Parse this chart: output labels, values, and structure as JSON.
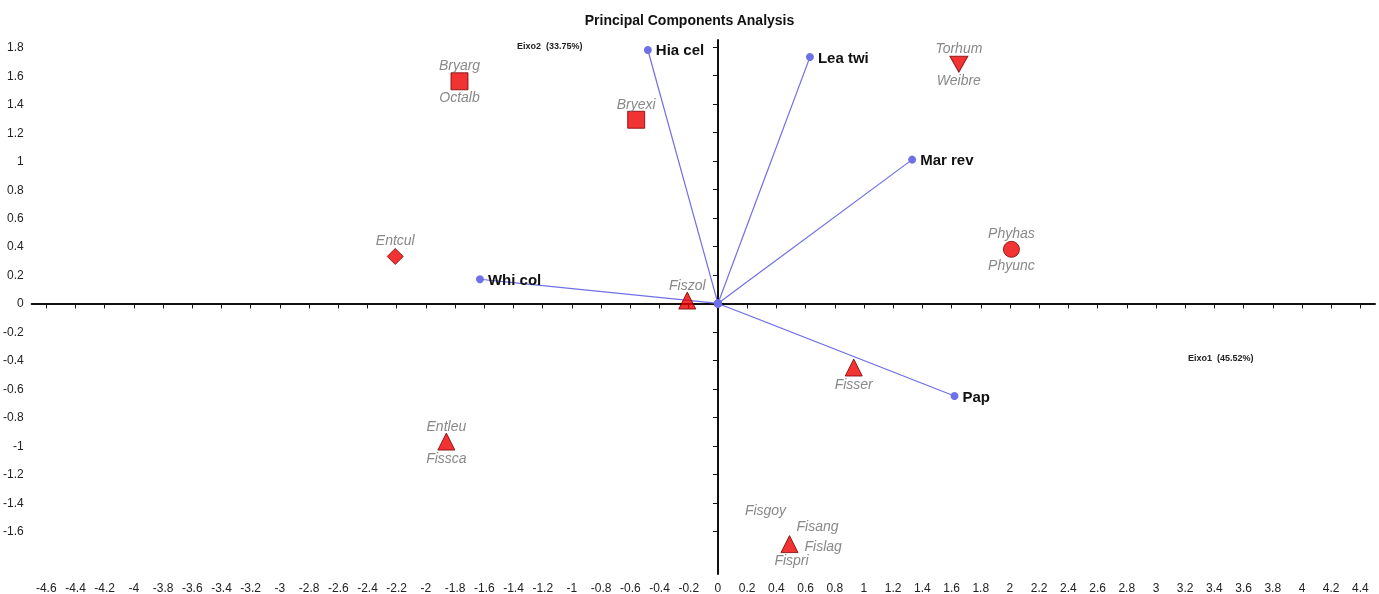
{
  "chart_data": {
    "type": "scatter",
    "title": "Principal Components Analysis",
    "xlabel": "Eixo1  (45.52%)",
    "ylabel": "Eixo2  (33.75%)",
    "xlim": [
      -4.7,
      4.5
    ],
    "xticks": [
      -4.6,
      -4.4,
      -4.2,
      -4,
      -3.8,
      -3.6,
      -3.4,
      -3.2,
      -3,
      -2.8,
      -2.6,
      -2.4,
      -2.2,
      -2,
      -1.8,
      -1.6,
      -1.4,
      -1.2,
      -1,
      -0.8,
      -0.6,
      -0.4,
      -0.2,
      0,
      0.2,
      0.4,
      0.6,
      0.8,
      1,
      1.2,
      1.4,
      1.6,
      1.8,
      2,
      2.2,
      2.4,
      2.6,
      2.8,
      3,
      3.2,
      3.4,
      3.6,
      3.8,
      4,
      4.2,
      4.4
    ],
    "ylim": [
      -1.9,
      1.85
    ],
    "yticks": [
      -1.6,
      -1.4,
      -1.2,
      -1,
      -0.8,
      -0.6,
      -0.4,
      -0.2,
      0,
      0.2,
      0.4,
      0.6,
      0.8,
      1,
      1.2,
      1.4,
      1.6,
      1.8
    ],
    "series": [
      {
        "marker": "square",
        "color": "#ee0000",
        "x": [
          -1.77,
          -0.56
        ],
        "values": [
          1.56,
          1.29
        ]
      },
      {
        "marker": "diamond",
        "color": "#ee0000",
        "x": [
          -2.21
        ],
        "values": [
          0.33
        ]
      },
      {
        "marker": "triangle",
        "color": "#ee0000",
        "x": [
          -0.21,
          -1.86,
          0.93,
          0.49
        ],
        "values": [
          0.02,
          -0.97,
          -0.45,
          -1.69
        ]
      },
      {
        "marker": "triangle_down",
        "color": "#ee0000",
        "x": [
          1.65
        ],
        "values": [
          1.68
        ]
      },
      {
        "marker": "circle",
        "color": "#ee0000",
        "x": [
          2.01
        ],
        "values": [
          0.38
        ]
      },
      {
        "type": "line",
        "marker": "circle",
        "name": "Hia cel",
        "color": "#6f6fe6",
        "x": [
          0,
          -0.48
        ],
        "values": [
          0,
          1.78
        ]
      },
      {
        "type": "line",
        "marker": "circle",
        "name": "Lea twi",
        "color": "#6f6fe6",
        "x": [
          0,
          0.63
        ],
        "values": [
          0,
          1.73
        ]
      },
      {
        "type": "line",
        "marker": "circle",
        "name": "Mar rev",
        "color": "#6f6fe6",
        "x": [
          0,
          1.33
        ],
        "values": [
          0,
          1.01
        ]
      },
      {
        "type": "line",
        "marker": "circle",
        "name": "Whi col",
        "color": "#6f6fe6",
        "x": [
          0,
          -1.63
        ],
        "values": [
          0,
          0.17
        ]
      },
      {
        "type": "line",
        "marker": "circle",
        "name": "Pap",
        "color": "#6f6fe6",
        "x": [
          0,
          1.62
        ],
        "values": [
          0,
          -0.65
        ]
      }
    ],
    "annotations": [
      {
        "text": "Bryarg",
        "x": -1.77,
        "y": 1.56
      },
      {
        "text": "Octalb",
        "x": -1.77,
        "y": 1.56
      },
      {
        "text": "Bryexi",
        "x": -0.56,
        "y": 1.29
      },
      {
        "text": "Entcul",
        "x": -2.21,
        "y": 0.33
      },
      {
        "text": "Fiszol",
        "x": -0.21,
        "y": 0.02
      },
      {
        "text": "Entleu",
        "x": -1.86,
        "y": -0.97
      },
      {
        "text": "Fissca",
        "x": -1.86,
        "y": -0.97
      },
      {
        "text": "Fisser",
        "x": 0.93,
        "y": -0.45
      },
      {
        "text": "Fisgoy",
        "x": 0.49,
        "y": -1.69
      },
      {
        "text": "Fisang",
        "x": 0.49,
        "y": -1.69
      },
      {
        "text": "Fislag",
        "x": 0.49,
        "y": -1.69
      },
      {
        "text": "Fispri",
        "x": 0.49,
        "y": -1.69
      },
      {
        "text": "Torhum",
        "x": 1.65,
        "y": 1.68
      },
      {
        "text": "Weibre",
        "x": 1.65,
        "y": 1.68
      },
      {
        "text": "Phyhas",
        "x": 2.01,
        "y": 0.38
      },
      {
        "text": "Phyunc",
        "x": 2.01,
        "y": 0.38
      }
    ]
  }
}
